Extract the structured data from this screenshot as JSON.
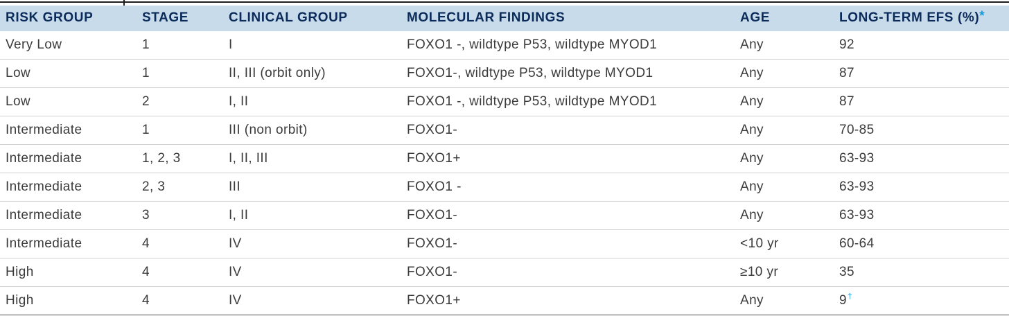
{
  "table": {
    "columns": {
      "risk_group": "RISK GROUP",
      "stage": "STAGE",
      "clinical_group": "CLINICAL GROUP",
      "molecular_findings": "MOLECULAR FINDINGS",
      "age": "AGE",
      "efs": "LONG-TERM EFS (%)",
      "efs_mark": "*"
    },
    "rows": [
      {
        "risk_group": "Very Low",
        "stage": "1",
        "clinical_group": "I",
        "molecular_findings": "FOXO1 -, wildtype P53, wildtype MYOD1",
        "age": "Any",
        "efs": "92"
      },
      {
        "risk_group": "Low",
        "stage": "1",
        "clinical_group": "II, III (orbit only)",
        "molecular_findings": "FOXO1-, wildtype P53, wildtype MYOD1",
        "age": "Any",
        "efs": "87"
      },
      {
        "risk_group": "Low",
        "stage": "2",
        "clinical_group": "I, II",
        "molecular_findings": "FOXO1 -, wildtype P53, wildtype MYOD1",
        "age": "Any",
        "efs": "87"
      },
      {
        "risk_group": "Intermediate",
        "stage": "1",
        "clinical_group": "III (non orbit)",
        "molecular_findings": "FOXO1-",
        "age": "Any",
        "efs": "70-85"
      },
      {
        "risk_group": "Intermediate",
        "stage": "1, 2, 3",
        "clinical_group": "I, II, III",
        "molecular_findings": "FOXO1+",
        "age": "Any",
        "efs": "63-93"
      },
      {
        "risk_group": "Intermediate",
        "stage": "2, 3",
        "clinical_group": "III",
        "molecular_findings": "FOXO1 -",
        "age": "Any",
        "efs": "63-93"
      },
      {
        "risk_group": "Intermediate",
        "stage": "3",
        "clinical_group": "I, II",
        "molecular_findings": "FOXO1-",
        "age": "Any",
        "efs": "63-93"
      },
      {
        "risk_group": "Intermediate",
        "stage": "4",
        "clinical_group": "IV",
        "molecular_findings": "FOXO1-",
        "age": "<10 yr",
        "efs": "60-64"
      },
      {
        "risk_group": "High",
        "stage": "4",
        "clinical_group": "IV",
        "molecular_findings": "FOXO1-",
        "age": "≥10 yr",
        "efs": "35"
      },
      {
        "risk_group": "High",
        "stage": "4",
        "clinical_group": "IV",
        "molecular_findings": "FOXO1+",
        "age": "Any",
        "efs": "9",
        "efs_mark": "†"
      }
    ]
  },
  "colors": {
    "header_bg": "#c8dbeb",
    "header_text": "#0b2b5a",
    "body_text": "#3b3b3b",
    "footnote_mark": "#1b9ad6",
    "row_divider": "#d2d2d2",
    "bottom_rule": "#4d4d4d",
    "rule": "#1e1e1e"
  }
}
